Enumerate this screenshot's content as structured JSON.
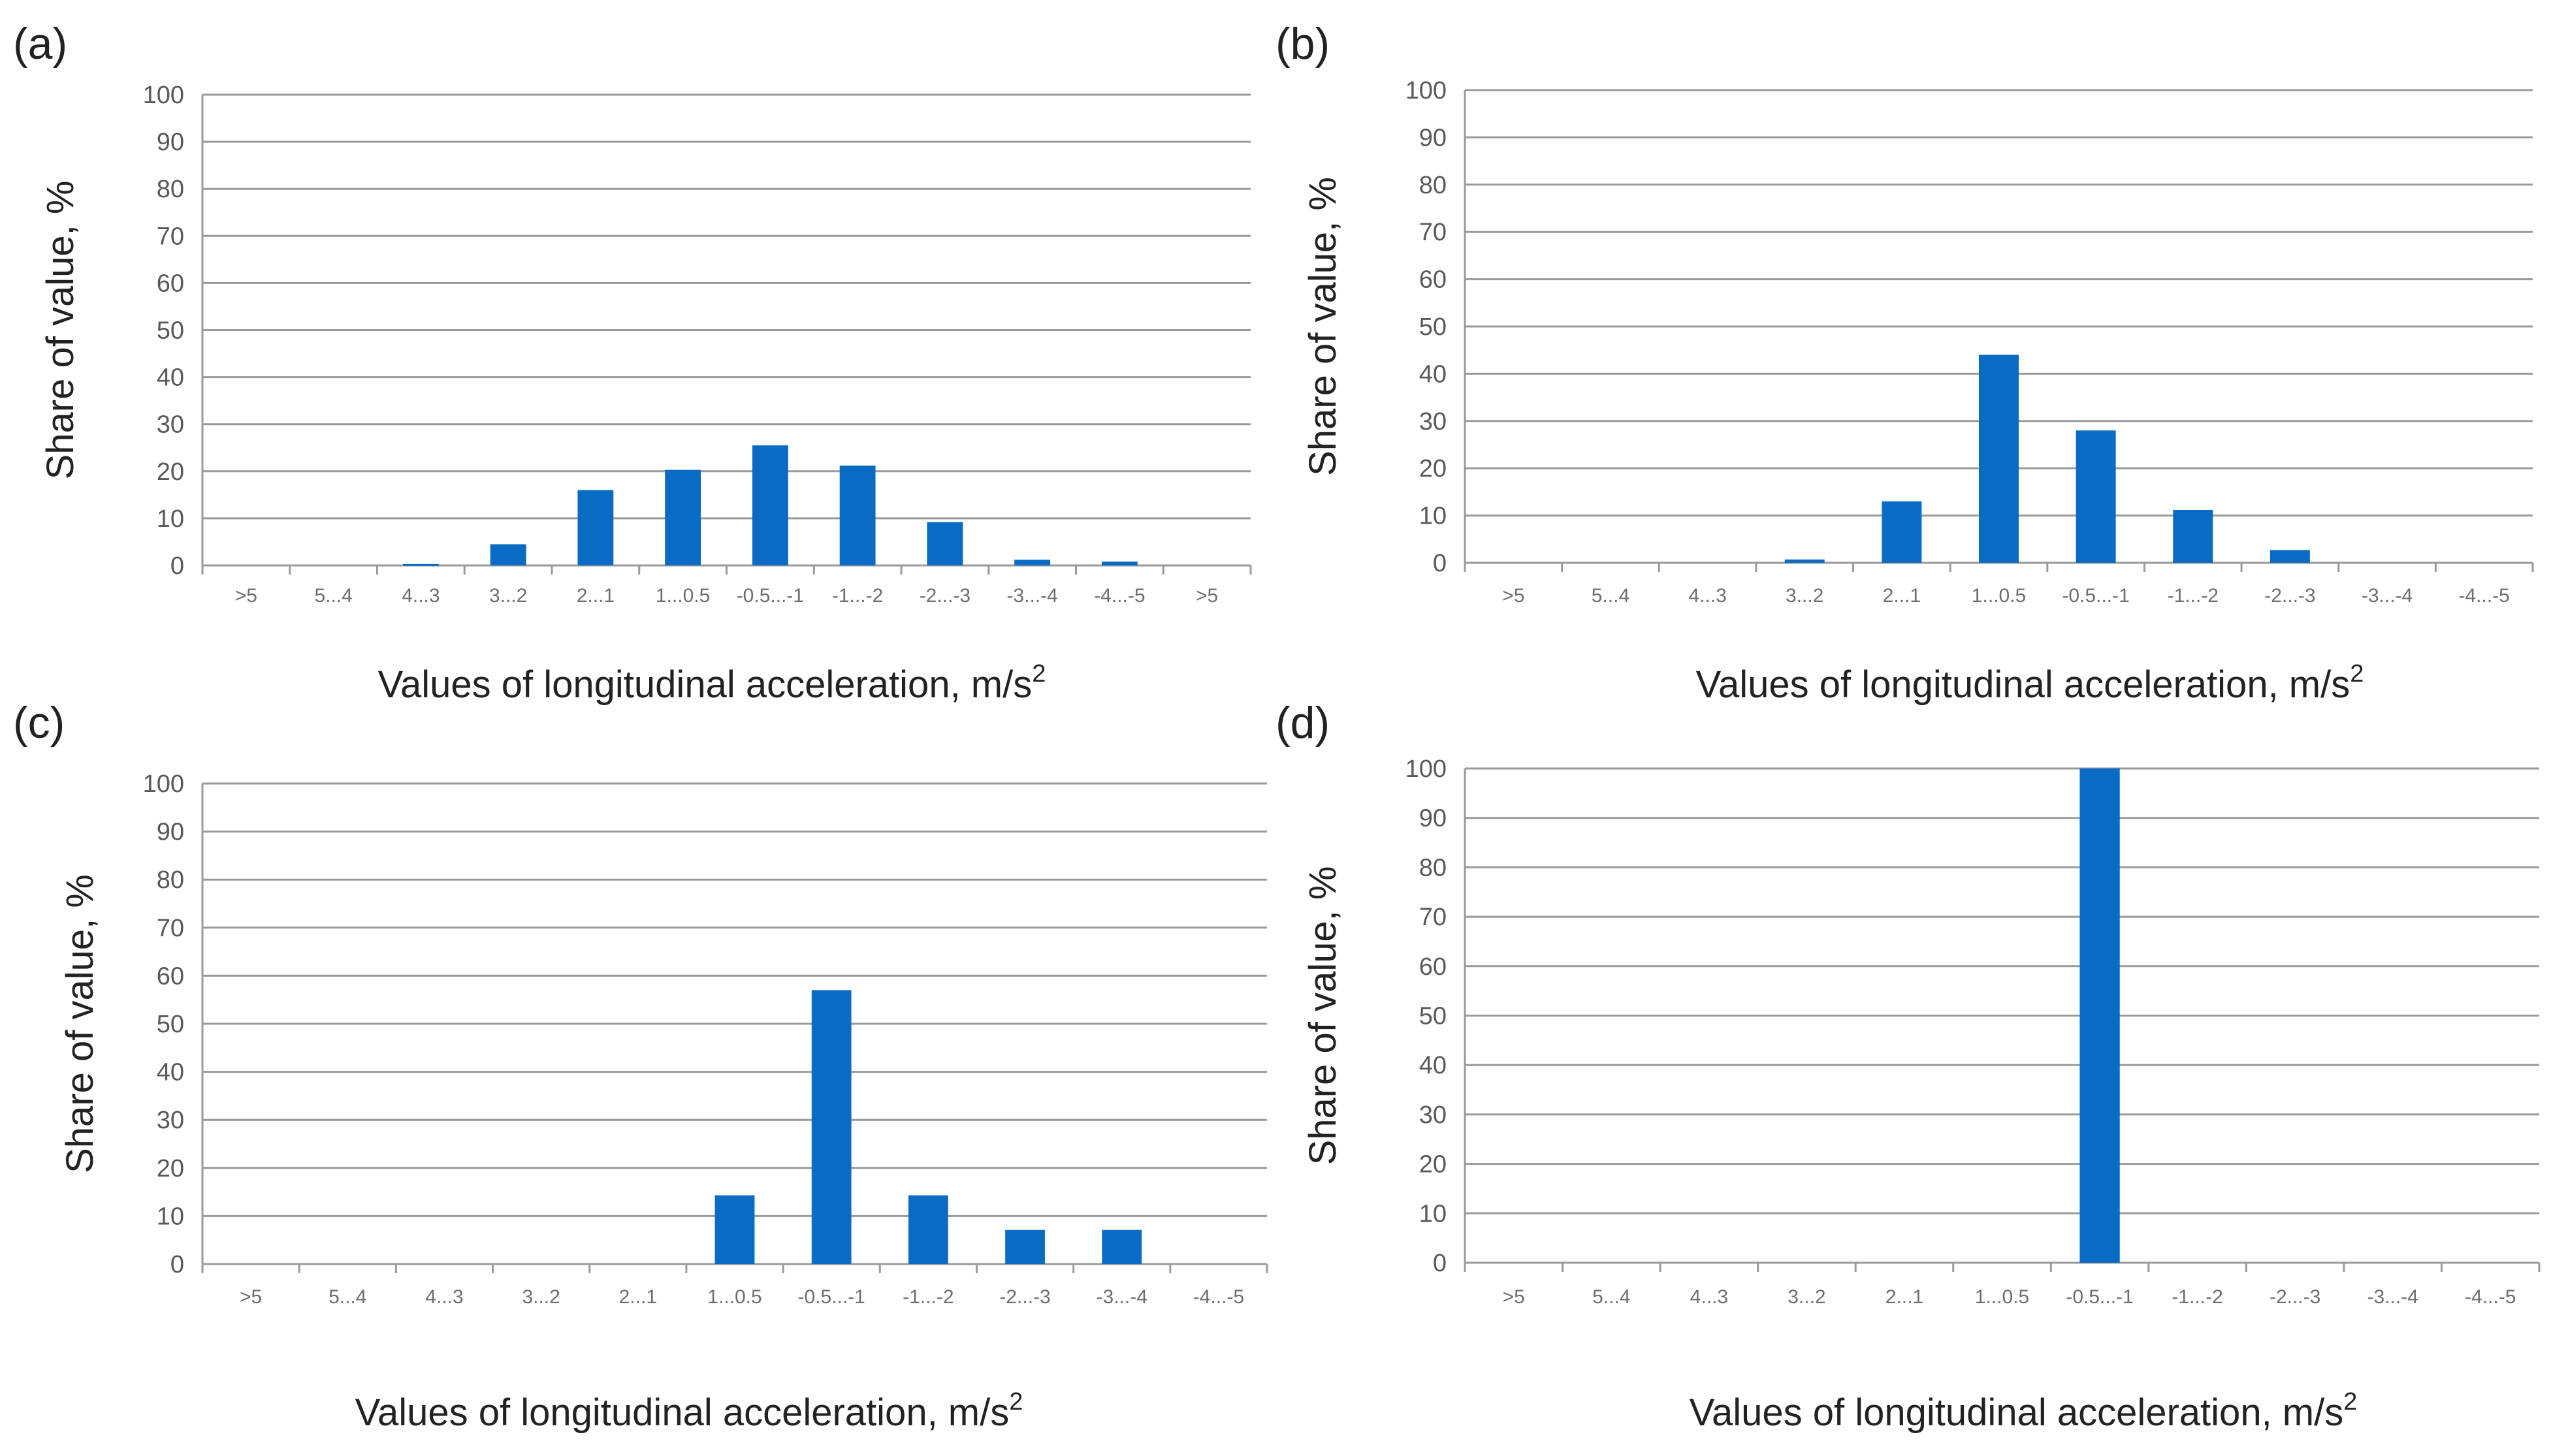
{
  "chart_data": [
    {
      "type": "bar",
      "panel_label": "(a)",
      "categories": [
        ">5",
        "5...4",
        "4...3",
        "3...2",
        "2...1",
        "1...0.5",
        "-0.5...-1",
        "-1...-2",
        "-2...-3",
        "-3...-4",
        "-4...-5",
        ">5"
      ],
      "values": [
        0,
        0,
        0.3,
        4.5,
        16,
        20.3,
        25.5,
        21.2,
        9.2,
        1.2,
        0.8,
        0
      ],
      "ylabel": "Share of value, %",
      "xlabel": "Values of longitudinal  acceleration, m/s",
      "xlabel_sup": "2",
      "ylim": [
        0,
        100
      ],
      "yticks": [
        0,
        10,
        20,
        30,
        40,
        50,
        60,
        70,
        80,
        90,
        100
      ],
      "grid": true,
      "color": "#0a6bc4"
    },
    {
      "type": "bar",
      "panel_label": "(b)",
      "categories": [
        ">5",
        "5...4",
        "4...3",
        "3...2",
        "2...1",
        "1...0.5",
        "-0.5...-1",
        "-1...-2",
        "-2...-3",
        "-3...-4",
        "-4...-5"
      ],
      "values": [
        0,
        0,
        0,
        0.7,
        13,
        44,
        28,
        11.2,
        2.7,
        0,
        0
      ],
      "ylabel": "Share of value, %",
      "xlabel": "Values of longitudinal  acceleration, m/s",
      "xlabel_sup": "2",
      "ylim": [
        0,
        100
      ],
      "yticks": [
        0,
        10,
        20,
        30,
        40,
        50,
        60,
        70,
        80,
        90,
        100
      ],
      "grid": true,
      "color": "#0a6bc4"
    },
    {
      "type": "bar",
      "panel_label": "(c)",
      "categories": [
        ">5",
        "5...4",
        "4...3",
        "3...2",
        "2...1",
        "1...0.5",
        "-0.5...-1",
        "-1...-2",
        "-2...-3",
        "-3...-4",
        "-4...-5"
      ],
      "values": [
        0,
        0,
        0,
        0,
        0,
        14.3,
        57,
        14.3,
        7.1,
        7.1,
        0
      ],
      "ylabel": "Share of value, %",
      "xlabel": "Values of longitudinal  acceleration, m/s",
      "xlabel_sup": "2",
      "ylim": [
        0,
        100
      ],
      "yticks": [
        0,
        10,
        20,
        30,
        40,
        50,
        60,
        70,
        80,
        90,
        100
      ],
      "grid": true,
      "color": "#0a6bc4"
    },
    {
      "type": "bar",
      "panel_label": "(d)",
      "categories": [
        ">5",
        "5...4",
        "4...3",
        "3...2",
        "2...1",
        "1...0.5",
        "-0.5...-1",
        "-1...-2",
        "-2...-3",
        "-3...-4",
        "-4...-5"
      ],
      "values": [
        0,
        0,
        0,
        0,
        0,
        0,
        100,
        0,
        0,
        0,
        0
      ],
      "ylabel": "Share of value, %",
      "xlabel": "Values of longitudinal  acceleration, m/s",
      "xlabel_sup": "2",
      "ylim": [
        0,
        100
      ],
      "yticks": [
        0,
        10,
        20,
        30,
        40,
        50,
        60,
        70,
        80,
        90,
        100
      ],
      "grid": true,
      "color": "#0a6bc4"
    }
  ]
}
